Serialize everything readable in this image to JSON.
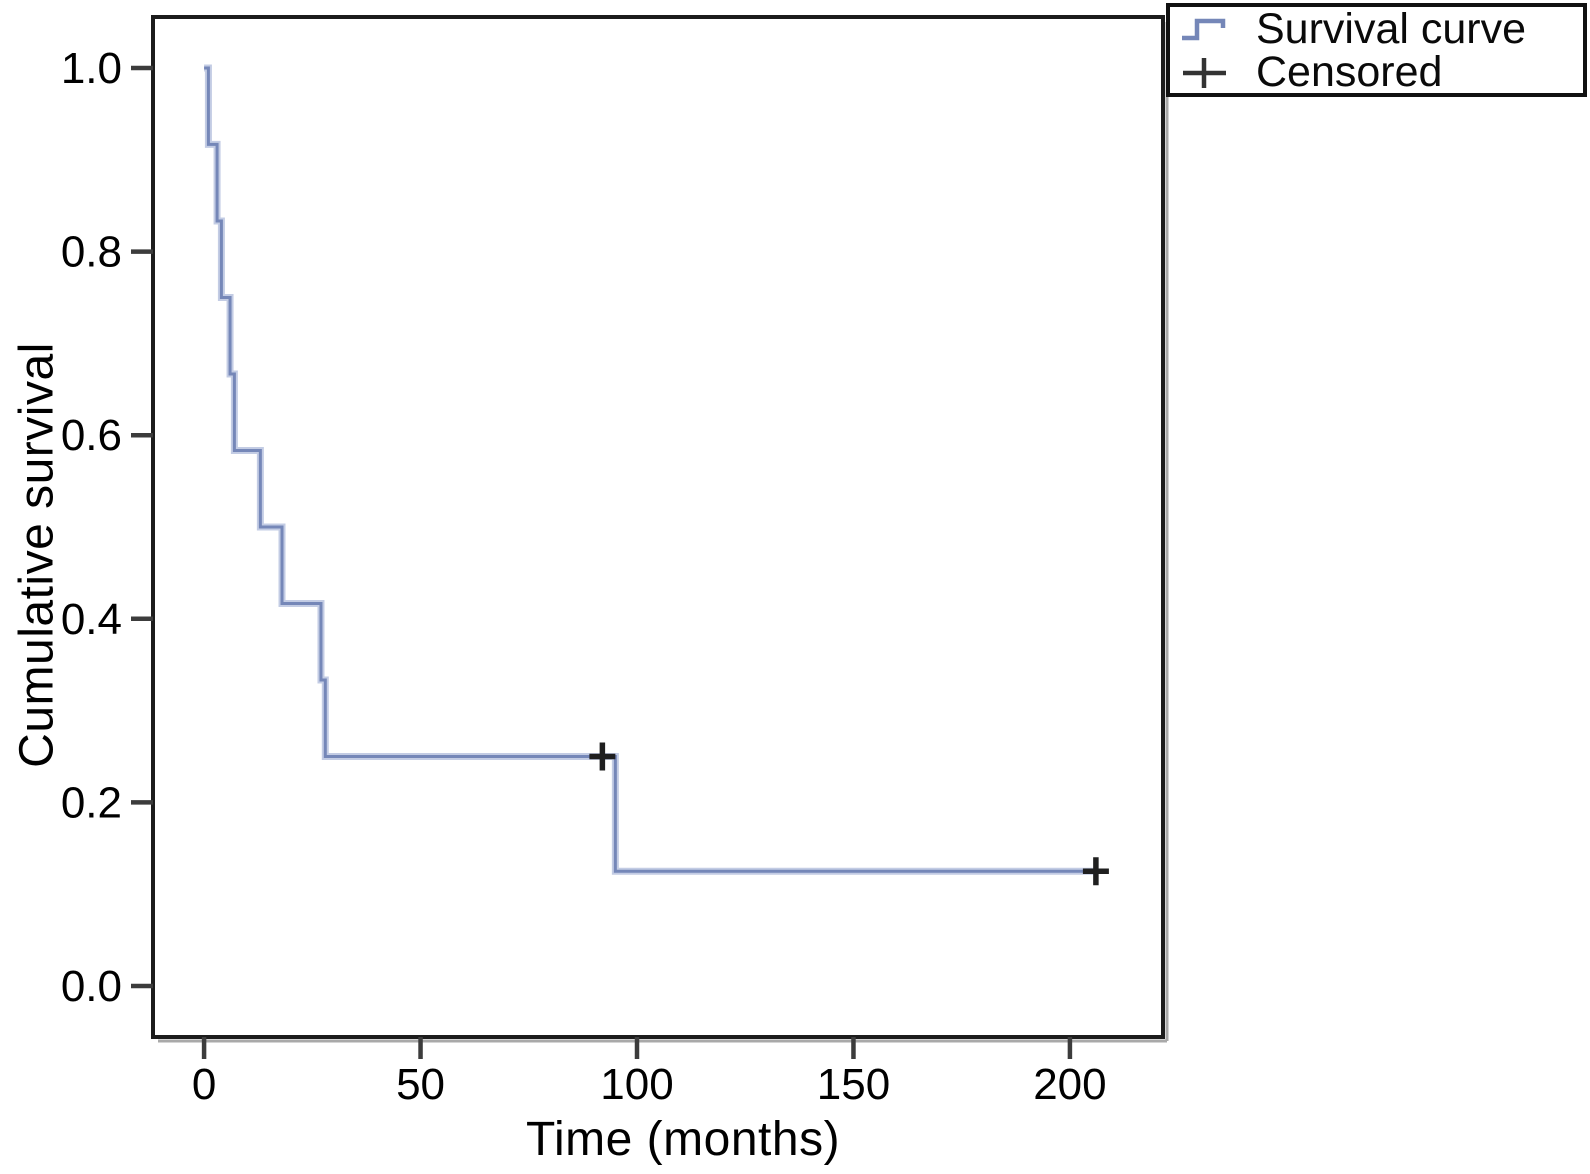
{
  "figure": {
    "background_color": "#ffffff",
    "axis_color": "#1c1c1c",
    "tick_color": "#3c3c3c",
    "text_color": "#000000"
  },
  "chart_data": {
    "type": "line",
    "subtype": "kaplan_meier_step",
    "title": "",
    "xlabel": "Time (months)",
    "ylabel": "Cumulative survival",
    "xlim": [
      -11.8,
      221.5
    ],
    "ylim": [
      -0.0555,
      1.0555
    ],
    "grid": false,
    "x_ticks": [
      {
        "value": 0,
        "label": "0"
      },
      {
        "value": 50,
        "label": "50"
      },
      {
        "value": 100,
        "label": "100"
      },
      {
        "value": 150,
        "label": "150"
      },
      {
        "value": 200,
        "label": "200"
      }
    ],
    "y_ticks": [
      {
        "value": 1.0,
        "label": "1.0"
      },
      {
        "value": 0.8,
        "label": "0.8"
      },
      {
        "value": 0.6,
        "label": "0.6"
      },
      {
        "value": 0.4,
        "label": "0.4"
      },
      {
        "value": 0.2,
        "label": "0.2"
      },
      {
        "value": 0.0,
        "label": "0.0"
      }
    ],
    "series": [
      {
        "name": "Survival curve",
        "color": "#7587b8",
        "halo_color": "#c3cce4",
        "start": {
          "time": 0,
          "survival": 1.0
        },
        "steps": [
          [
            1,
            0.9167
          ],
          [
            3,
            0.8333
          ],
          [
            4,
            0.75
          ],
          [
            6,
            0.6667
          ],
          [
            7,
            0.5833
          ],
          [
            13,
            0.5
          ],
          [
            18,
            0.4167
          ],
          [
            27,
            0.3333
          ],
          [
            28,
            0.25
          ],
          [
            95,
            0.125
          ]
        ],
        "end_time": 206
      }
    ],
    "censored": {
      "name": "Censored",
      "color": "#1f1f1f",
      "points": [
        [
          92,
          0.25
        ],
        [
          206,
          0.125
        ]
      ]
    },
    "legend": {
      "position": "top-right-outside",
      "entries": [
        {
          "label": "Survival curve",
          "symbol": "step-line",
          "color": "#7587b8"
        },
        {
          "label": "Censored",
          "symbol": "plus",
          "color": "#1f1f1f"
        }
      ]
    }
  }
}
